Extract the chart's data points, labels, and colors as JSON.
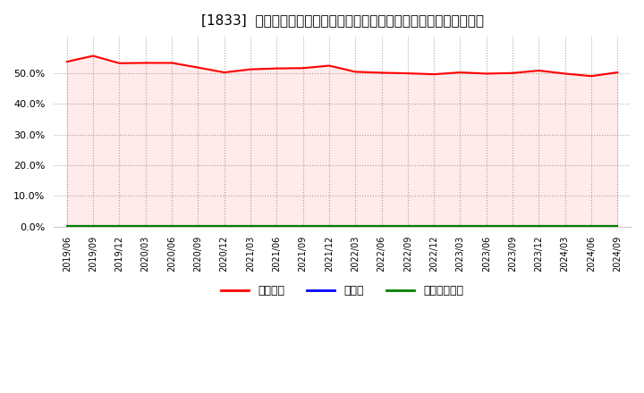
{
  "title": "[1833]  自己資本、のれん、繰延税金資産の総資産に対する比率の推移",
  "x_labels": [
    "2019/06",
    "2019/09",
    "2019/12",
    "2020/03",
    "2020/06",
    "2020/09",
    "2020/12",
    "2021/03",
    "2021/06",
    "2021/09",
    "2021/12",
    "2022/03",
    "2022/06",
    "2022/09",
    "2022/12",
    "2023/03",
    "2023/06",
    "2023/09",
    "2023/12",
    "2024/03",
    "2024/06",
    "2024/09"
  ],
  "equity_ratio": [
    0.538,
    0.557,
    0.533,
    0.534,
    0.534,
    0.519,
    0.503,
    0.513,
    0.516,
    0.517,
    0.525,
    0.505,
    0.502,
    0.5,
    0.497,
    0.503,
    0.499,
    0.501,
    0.509,
    0.499,
    0.491,
    0.503
  ],
  "goodwill_ratio": [
    0.001,
    0.001,
    0.001,
    0.001,
    0.001,
    0.001,
    0.001,
    0.001,
    0.001,
    0.001,
    0.001,
    0.001,
    0.001,
    0.001,
    0.001,
    0.001,
    0.001,
    0.001,
    0.001,
    0.001,
    0.001,
    0.001
  ],
  "deferred_tax_ratio": [
    0.001,
    0.001,
    0.001,
    0.001,
    0.001,
    0.001,
    0.001,
    0.001,
    0.001,
    0.001,
    0.001,
    0.001,
    0.001,
    0.001,
    0.001,
    0.001,
    0.001,
    0.001,
    0.001,
    0.001,
    0.001,
    0.001
  ],
  "equity_color": "#ff0000",
  "goodwill_color": "#0000ff",
  "deferred_tax_color": "#008000",
  "background_color": "#ffffff",
  "grid_color": "#aaaaaa",
  "ylim": [
    0.0,
    0.62
  ],
  "yticks": [
    0.0,
    0.1,
    0.2,
    0.3,
    0.4,
    0.5
  ],
  "legend_labels": [
    "自己資本",
    "のれん",
    "繰延税金資産"
  ]
}
